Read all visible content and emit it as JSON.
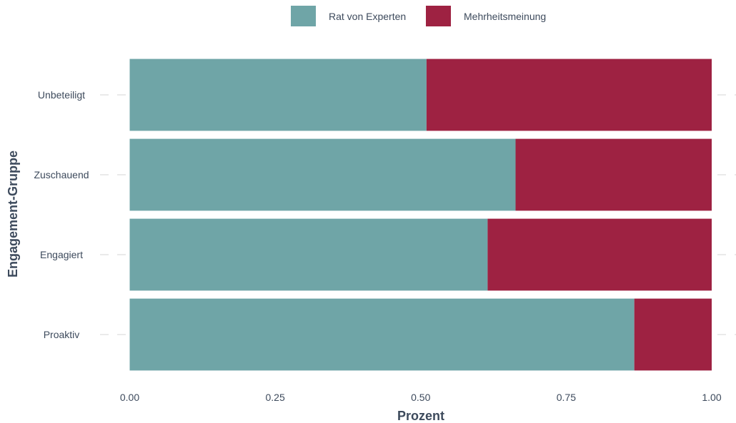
{
  "chart_data": {
    "type": "bar",
    "orientation": "horizontal",
    "stacked": true,
    "categories": [
      "Unbeteiligt",
      "Zuschauend",
      "Engagiert",
      "Proaktiv"
    ],
    "series": [
      {
        "name": "Rat von Experten",
        "values": [
          0.51,
          0.663,
          0.615,
          0.867
        ],
        "color": "#6fa5a7"
      },
      {
        "name": "Mehrheitsmeinung",
        "values": [
          0.49,
          0.337,
          0.385,
          0.133
        ],
        "color": "#9e2242"
      }
    ],
    "xlabel": "Prozent",
    "ylabel": "Engagement-Gruppe",
    "xlim": [
      0,
      1
    ],
    "xticks": [
      "0.00",
      "0.25",
      "0.50",
      "0.75",
      "1.00"
    ],
    "xtick_values": [
      0,
      0.25,
      0.5,
      0.75,
      1
    ],
    "legend_position": "top",
    "grid": "dashed horizontal gridlines at categories"
  }
}
